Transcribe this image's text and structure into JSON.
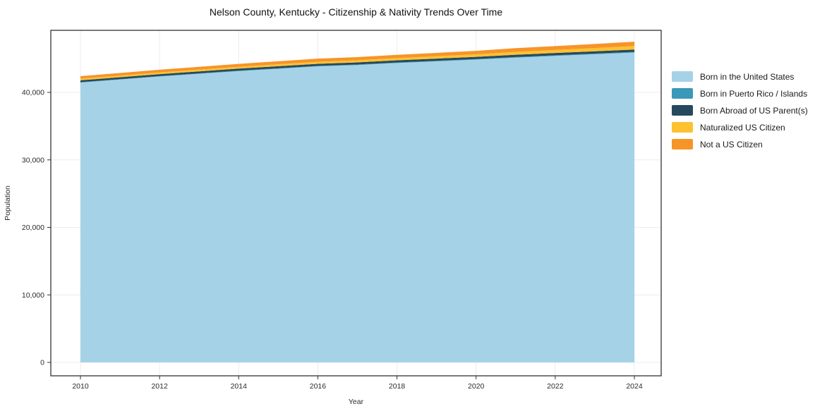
{
  "chart_data": {
    "type": "area",
    "stacked": true,
    "title": "Nelson County, Kentucky - Citizenship & Nativity Trends Over Time",
    "xlabel": "Year",
    "ylabel": "Population",
    "grid": true,
    "legend_position": "right",
    "x": [
      2010,
      2011,
      2012,
      2013,
      2014,
      2015,
      2016,
      2017,
      2018,
      2019,
      2020,
      2021,
      2022,
      2023,
      2024
    ],
    "xticks": [
      2010,
      2012,
      2014,
      2016,
      2018,
      2020,
      2022,
      2024
    ],
    "yticks": [
      {
        "value": 0,
        "label": "0"
      },
      {
        "value": 10000,
        "label": "10,000"
      },
      {
        "value": 20000,
        "label": "20,000"
      },
      {
        "value": 30000,
        "label": "30,000"
      },
      {
        "value": 40000,
        "label": "40,000"
      }
    ],
    "ylim": [
      0,
      49000
    ],
    "series": [
      {
        "name": "Born in the United States",
        "color": "#a6d2e7",
        "values": [
          41450,
          41900,
          42350,
          42750,
          43150,
          43500,
          43850,
          44050,
          44350,
          44600,
          44850,
          45150,
          45400,
          45650,
          45900
        ]
      },
      {
        "name": "Born in Puerto Rico / Islands",
        "color": "#3a98b9",
        "values": [
          60,
          60,
          65,
          65,
          70,
          70,
          75,
          75,
          80,
          80,
          85,
          85,
          90,
          90,
          95
        ]
      },
      {
        "name": "Born Abroad of US Parent(s)",
        "color": "#26495d",
        "values": [
          280,
          285,
          290,
          295,
          300,
          305,
          310,
          315,
          320,
          325,
          330,
          335,
          340,
          345,
          350
        ]
      },
      {
        "name": "Naturalized US Citizen",
        "color": "#fcc232",
        "values": [
          230,
          240,
          250,
          260,
          270,
          285,
          300,
          315,
          330,
          350,
          370,
          420,
          450,
          480,
          520
        ]
      },
      {
        "name": "Not a US Citizen",
        "color": "#f79428",
        "values": [
          380,
          390,
          400,
          410,
          430,
          450,
          460,
          470,
          480,
          500,
          520,
          560,
          580,
          600,
          640
        ]
      }
    ]
  }
}
